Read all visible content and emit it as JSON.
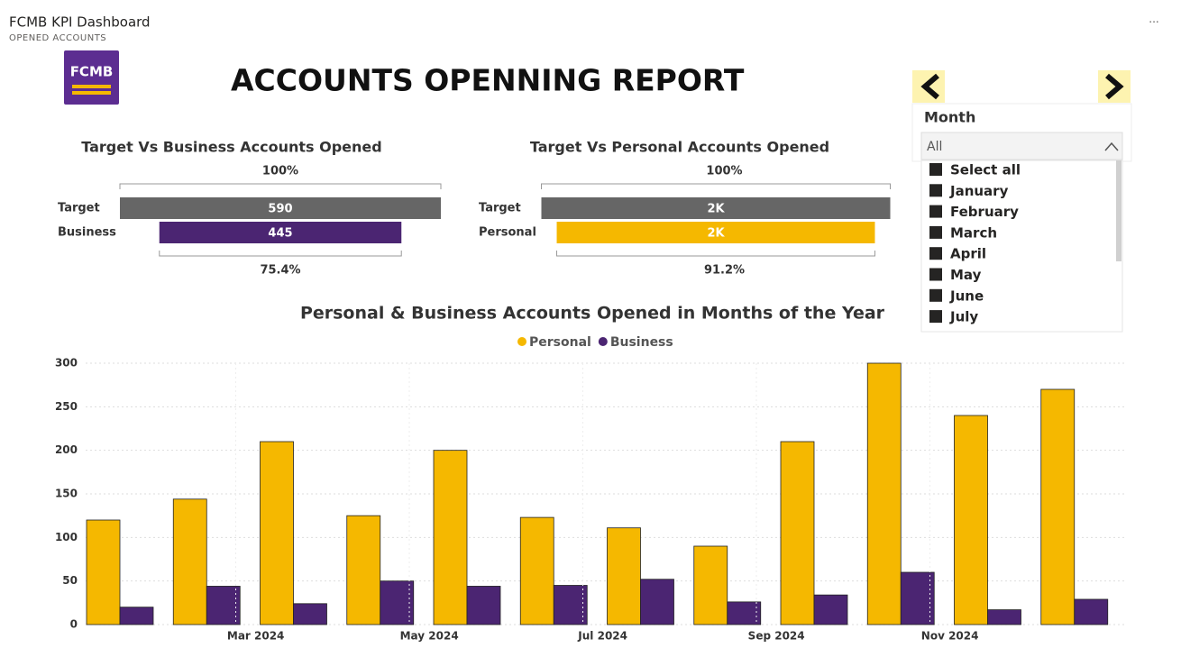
{
  "header": {
    "title": "FCMB KPI Dashboard",
    "subtitle": "OPENED ACCOUNTS",
    "menu": "···"
  },
  "logo": {
    "text": "FCMB"
  },
  "report_title": "ACCOUNTS OPENNING REPORT",
  "slicer": {
    "title": "Month",
    "selected": "All",
    "items": [
      "Select all",
      "January",
      "February",
      "March",
      "April",
      "May",
      "June",
      "July"
    ]
  },
  "chart_data": [
    {
      "type": "funnel",
      "title": "Target Vs Business Accounts Opened",
      "categories": [
        "Target",
        "Business"
      ],
      "values": [
        590,
        445
      ],
      "colors": [
        "#666666",
        "#4b2572"
      ],
      "percents": [
        100,
        75.4
      ],
      "percent_labels": [
        "100%",
        "75.4%"
      ]
    },
    {
      "type": "funnel",
      "title": "Target Vs Personal Accounts Opened",
      "categories": [
        "Target",
        "Personal"
      ],
      "values": [
        2350,
        2143
      ],
      "value_labels": [
        "2K",
        "2K"
      ],
      "colors": [
        "#666666",
        "#f5b800"
      ],
      "percents": [
        100,
        91.2
      ],
      "percent_labels": [
        "100%",
        "91.2%"
      ]
    },
    {
      "type": "grouped_bar",
      "title": "Personal & Business Accounts Opened in Months of the Year",
      "categories": [
        null,
        null,
        "Mar 2024",
        null,
        "May 2024",
        null,
        "Jul 2024",
        null,
        "Sep 2024",
        null,
        "Nov 2024",
        null
      ],
      "series": [
        {
          "name": "Personal",
          "color": "#f5b800",
          "values": [
            120,
            144,
            210,
            125,
            200,
            123,
            111,
            90,
            210,
            300,
            240,
            270
          ]
        },
        {
          "name": "Business",
          "color": "#4b2572",
          "values": [
            20,
            44,
            24,
            50,
            44,
            45,
            52,
            26,
            34,
            60,
            17,
            29
          ]
        }
      ],
      "ylim": [
        0,
        300
      ],
      "yticks": [
        0,
        50,
        100,
        150,
        200,
        250,
        300
      ],
      "grid": true
    }
  ]
}
